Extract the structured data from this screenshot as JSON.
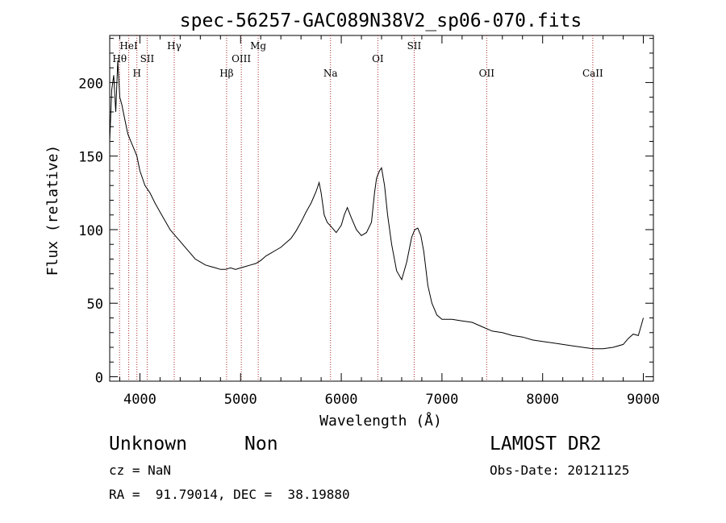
{
  "chart_data": {
    "type": "line",
    "title": "spec-56257-GAC089N38V2_sp06-070.fits",
    "xlabel": "Wavelength (Å)",
    "ylabel": "Flux (relative)",
    "xlim": [
      3700,
      9100
    ],
    "ylim": [
      -3,
      232
    ],
    "xticks": [
      4000,
      5000,
      6000,
      7000,
      8000,
      9000
    ],
    "yticks": [
      0,
      50,
      100,
      150,
      200
    ],
    "grid": false,
    "series": [
      {
        "x": [
          3700,
          3720,
          3740,
          3760,
          3780,
          3800,
          3820,
          3850,
          3880,
          3910,
          3940,
          3970,
          4000,
          4050,
          4100,
          4150,
          4200,
          4250,
          4300,
          4350,
          4400,
          4450,
          4500,
          4550,
          4600,
          4650,
          4700,
          4750,
          4800,
          4850,
          4900,
          4950,
          5000,
          5050,
          5100,
          5150,
          5200,
          5250,
          5300,
          5350,
          5400,
          5450,
          5500,
          5550,
          5600,
          5650,
          5700,
          5750,
          5780,
          5800,
          5830,
          5860,
          5900,
          5950,
          6000,
          6030,
          6060,
          6100,
          6150,
          6200,
          6250,
          6300,
          6330,
          6350,
          6380,
          6400,
          6430,
          6460,
          6500,
          6550,
          6600,
          6650,
          6700,
          6730,
          6760,
          6790,
          6820,
          6860,
          6900,
          6950,
          7000,
          7100,
          7200,
          7300,
          7400,
          7500,
          7600,
          7700,
          7800,
          7900,
          8000,
          8100,
          8200,
          8300,
          8400,
          8500,
          8600,
          8700,
          8800,
          8850,
          8900,
          8950,
          8980,
          9000
        ],
        "y": [
          160,
          195,
          205,
          180,
          215,
          190,
          185,
          175,
          165,
          160,
          155,
          150,
          140,
          130,
          125,
          118,
          112,
          106,
          100,
          96,
          92,
          88,
          84,
          80,
          78,
          76,
          75,
          74,
          73,
          73,
          74,
          73,
          74,
          75,
          76,
          77,
          79,
          82,
          84,
          86,
          88,
          91,
          94,
          99,
          105,
          112,
          118,
          126,
          132,
          125,
          110,
          105,
          102,
          98,
          103,
          110,
          115,
          108,
          100,
          96,
          98,
          105,
          125,
          135,
          140,
          142,
          130,
          110,
          90,
          72,
          66,
          78,
          95,
          100,
          101,
          96,
          85,
          62,
          50,
          42,
          39,
          39,
          38,
          37,
          34,
          31,
          30,
          28,
          27,
          25,
          24,
          23,
          22,
          21,
          20,
          19,
          19,
          20,
          22,
          26,
          29,
          28,
          35,
          40
        ]
      }
    ],
    "lines": [
      {
        "label": "Hθ",
        "x": 3798,
        "row": 2
      },
      {
        "label": "HeI",
        "x": 3889,
        "row": 1
      },
      {
        "label": "H",
        "x": 3970,
        "row": 3
      },
      {
        "label": "SII",
        "x": 4072,
        "row": 2
      },
      {
        "label": "Hγ",
        "x": 4341,
        "row": 1
      },
      {
        "label": "Hβ",
        "x": 4861,
        "row": 3
      },
      {
        "label": "OIII",
        "x": 5007,
        "row": 2
      },
      {
        "label": "Mg",
        "x": 5175,
        "row": 1
      },
      {
        "label": "Na",
        "x": 5893,
        "row": 3
      },
      {
        "label": "OI",
        "x": 6363,
        "row": 2
      },
      {
        "label": "SII",
        "x": 6724,
        "row": 1
      },
      {
        "label": "OII",
        "x": 7444,
        "row": 3
      },
      {
        "label": "CaII",
        "x": 8498,
        "row": 3
      }
    ]
  },
  "info": {
    "object_class": "Unknown",
    "subclass": "Non",
    "survey": "LAMOST DR2",
    "cz": "cz = NaN",
    "obs_date": "Obs-Date: 20121125",
    "coords": "RA =  91.79014, DEC =  38.19880"
  }
}
